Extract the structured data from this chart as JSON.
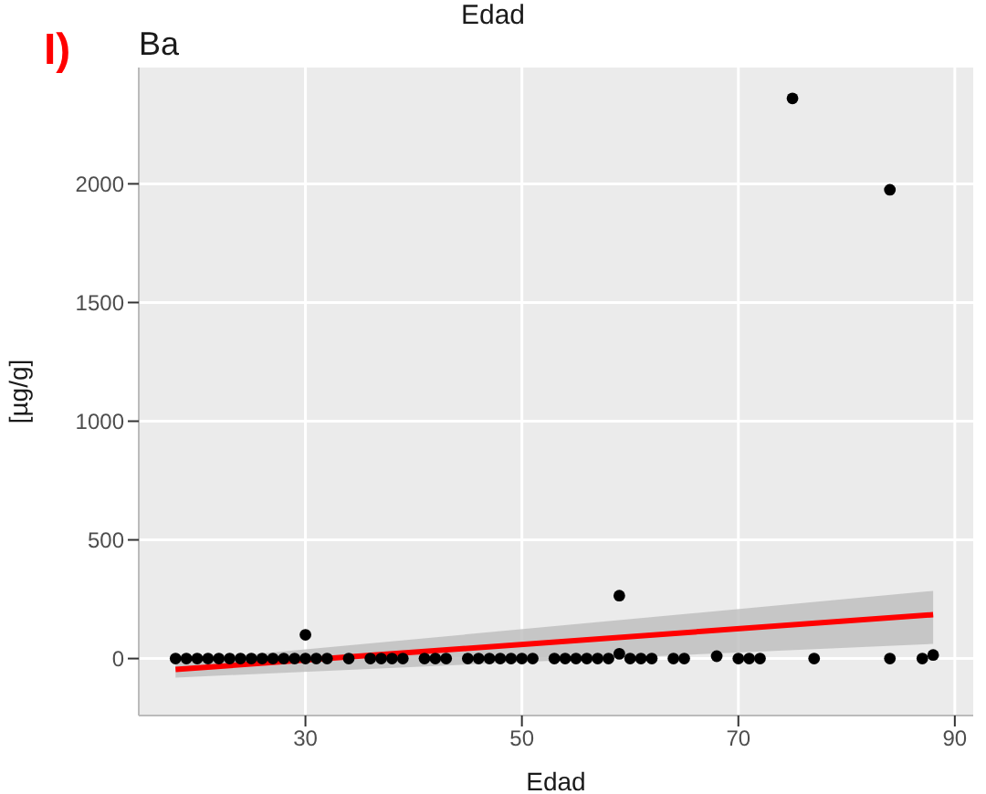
{
  "chart_data": {
    "type": "scatter",
    "title": "Ba",
    "xlabel": "Edad",
    "ylabel": "[µg/g]",
    "annotations": [
      "I)",
      "Edad"
    ],
    "xlim": [
      14.6,
      91.7
    ],
    "xticks": [
      30,
      50,
      70,
      90
    ],
    "ylim": [
      -240,
      2490
    ],
    "yticks": [
      0,
      500,
      1000,
      1500,
      2000
    ],
    "grid": true,
    "series": [
      {
        "marker": "circle",
        "color": "#000000",
        "x": [
          18,
          19,
          20,
          21,
          22,
          23,
          24,
          25,
          26,
          27,
          28,
          29,
          30,
          30,
          31,
          32,
          34,
          36,
          37,
          38,
          39,
          41,
          42,
          43,
          45,
          46,
          47,
          48,
          49,
          50,
          51,
          53,
          54,
          55,
          56,
          57,
          58,
          59,
          59,
          60,
          61,
          62,
          64,
          65,
          68,
          70,
          71,
          72,
          75,
          77,
          84,
          84,
          87,
          88
        ],
        "values": [
          0,
          0,
          0,
          0,
          0,
          0,
          0,
          0,
          0,
          0,
          0,
          0,
          0,
          100,
          0,
          0,
          0,
          0,
          0,
          0,
          0,
          0,
          0,
          0,
          0,
          0,
          0,
          0,
          0,
          0,
          0,
          0,
          0,
          0,
          0,
          0,
          0,
          20,
          265,
          0,
          0,
          0,
          0,
          0,
          10,
          0,
          0,
          0,
          2360,
          0,
          1975,
          0,
          0,
          15
        ]
      },
      {
        "type": "line",
        "marker": "none",
        "color": "#ff0000",
        "x": [
          18,
          88
        ],
        "values": [
          -46,
          185
        ],
        "lower": [
          -80,
          62
        ],
        "upper": [
          -12,
          285
        ]
      }
    ]
  }
}
